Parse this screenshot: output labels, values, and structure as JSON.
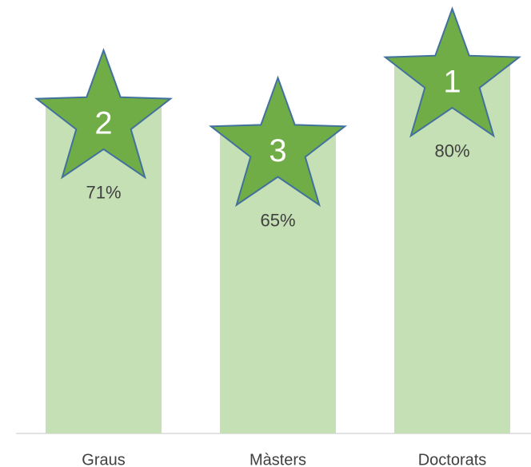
{
  "chart_data": {
    "type": "bar",
    "categories": [
      "Graus",
      "Màsters",
      "Doctorats"
    ],
    "values": [
      71,
      65,
      80
    ],
    "value_labels": [
      "71%",
      "65%",
      "80%"
    ],
    "ranks": [
      2,
      3,
      1
    ],
    "color": "#c5e0b4",
    "star_color": "#70ad47",
    "ylim": [
      0,
      94
    ]
  }
}
